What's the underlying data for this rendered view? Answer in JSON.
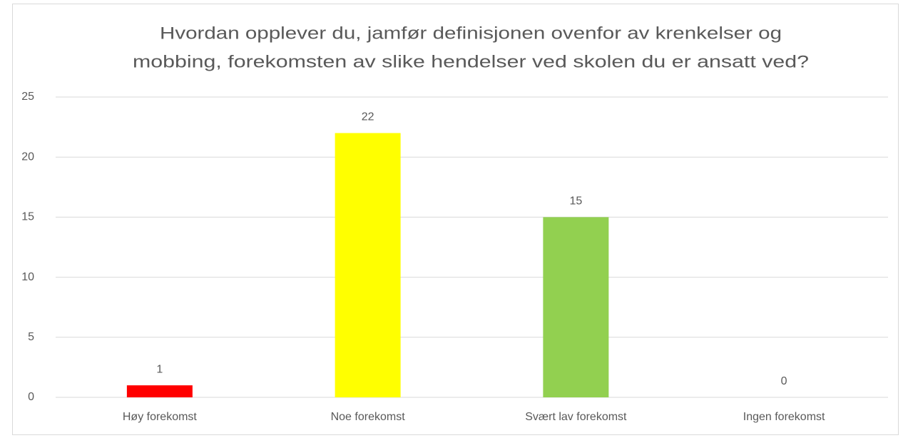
{
  "chart_data": {
    "type": "bar",
    "title": [
      "Hvordan opplever du, jamfør definisjonen ovenfor av krenkelser og",
      "mobbing, forekomsten av slike hendelser ved skolen du er ansatt ved?"
    ],
    "categories": [
      "Høy forekomst",
      "Noe forekomst",
      "Svært lav forekomst",
      "Ingen forekomst"
    ],
    "values": [
      1,
      22,
      15,
      0
    ],
    "colors": [
      "#ff0000",
      "#ffff00",
      "#92d050",
      "#92d050"
    ],
    "ylim": [
      0,
      25
    ],
    "yticks": [
      0,
      5,
      10,
      15,
      20,
      25
    ],
    "grid": true
  }
}
